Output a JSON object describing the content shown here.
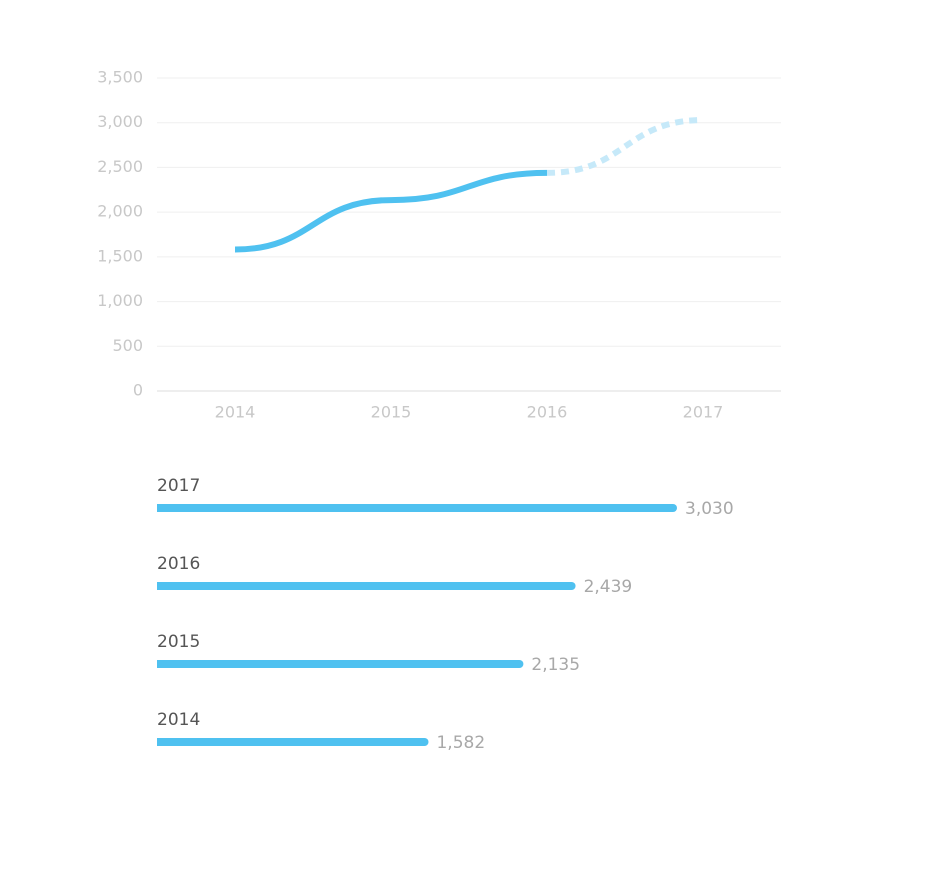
{
  "chart_data": [
    {
      "type": "line",
      "categories": [
        "2014",
        "2015",
        "2016",
        "2017"
      ],
      "series": [
        {
          "color": "#4fc1f0",
          "values": [
            1582,
            2135,
            2439,
            null
          ],
          "dashed": false
        },
        {
          "color": "#c6e9f9",
          "values": [
            null,
            null,
            2439,
            3030
          ],
          "dashed": true
        }
      ],
      "ylim": [
        0,
        3500
      ],
      "yticks": [
        0,
        500,
        {
          "value": 1000,
          "label": "1,000"
        },
        {
          "value": 1500,
          "label": "1,500"
        },
        {
          "value": 2000,
          "label": "2,000"
        },
        {
          "value": 2500,
          "label": "2,500"
        },
        {
          "value": 3000,
          "label": "3,000"
        },
        {
          "value": 3500,
          "label": "3,500"
        }
      ],
      "grid": true
    },
    {
      "type": "hbar",
      "categories": [
        "2017",
        "2016",
        "2015",
        "2014"
      ],
      "values": [
        3030,
        2439,
        2135,
        1582
      ],
      "value_labels": [
        "3,030",
        "2,439",
        "2,135",
        "1,582"
      ],
      "color": "#4fc1f0"
    }
  ]
}
